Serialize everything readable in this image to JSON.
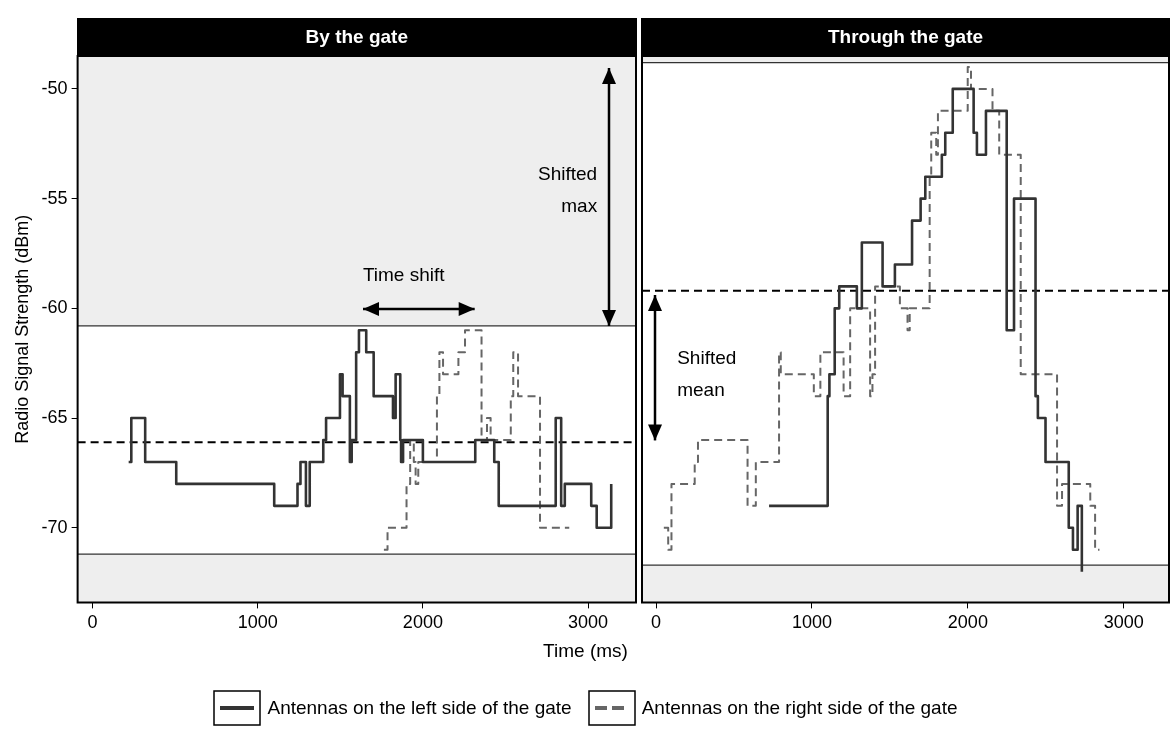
{
  "chart_data": [
    {
      "type": "step",
      "title": "By the gate",
      "xlabel": "Time (ms)",
      "ylabel": "Radio Signal Strength (dBm)",
      "xlim": [
        -90,
        3290
      ],
      "xticks": [
        0,
        1000,
        2000,
        3000
      ],
      "ylim": [
        -73.4,
        -48.5
      ],
      "yticks": [
        -70,
        -65,
        -60,
        -55,
        -50
      ],
      "legend": "bottom",
      "series": [
        {
          "name": "Antennas on the left side of the gate",
          "color": "#333333",
          "line_style": "solid",
          "x": [
            219,
            235,
            319,
            507,
            1100,
            1241,
            1259,
            1292,
            1315,
            1397,
            1414,
            1498,
            1514,
            1558,
            1569,
            1596,
            1613,
            1657,
            1702,
            1819,
            1835,
            1863,
            1868,
            1880,
            2000,
            2317,
            2432,
            2459,
            2804,
            2837,
            2859,
            3019,
            3052,
            3140
          ],
          "values": [
            -67,
            -65,
            -67,
            -68,
            -69,
            -68,
            -67,
            -69,
            -67,
            -66,
            -65,
            -63,
            -64,
            -67,
            -66,
            -62,
            -61,
            -62,
            -64,
            -65,
            -63,
            -66,
            -67,
            -66,
            -67,
            -66,
            -67,
            -69,
            -65,
            -69,
            -68,
            -69,
            -70,
            -68
          ]
        },
        {
          "name": "Antennas on the right side of the gate",
          "color": "#666666",
          "line_style": "dashed",
          "x": [
            1764,
            1786,
            1901,
            1923,
            1945,
            1956,
            1972,
            2085,
            2100,
            2122,
            2215,
            2255,
            2355,
            2388,
            2410,
            2532,
            2547,
            2576,
            2709,
            2886
          ],
          "values": [
            -71,
            -70,
            -68,
            -66,
            -67,
            -68,
            -67,
            -64,
            -62,
            -63,
            -62,
            -61,
            -66,
            -65,
            -66,
            -64,
            -62,
            -64,
            -70,
            -70
          ]
        }
      ],
      "bands": [
        {
          "axis": "y",
          "from": -60.8,
          "to": -48.5,
          "color": "#eeeeee"
        },
        {
          "axis": "y",
          "from": -73.4,
          "to": -71.2,
          "color": "#eeeeee"
        }
      ],
      "ref_lines": [
        {
          "axis": "y",
          "value": -60.8,
          "color": "#333333",
          "line_style": "solid"
        },
        {
          "axis": "y",
          "value": -71.2,
          "color": "#333333",
          "line_style": "solid"
        },
        {
          "axis": "y",
          "value": -66.1,
          "color": "#000000",
          "line_style": "dashed"
        }
      ],
      "annotations": [
        "Time shift",
        "Shifted max"
      ]
    },
    {
      "type": "step",
      "title": "Through the gate",
      "xlim": [
        -90,
        3290
      ],
      "xticks": [
        0,
        1000,
        2000,
        3000
      ],
      "ylim": [
        -73.4,
        -48.5
      ],
      "yticks": [
        -70,
        -65,
        -60,
        -55,
        -50
      ],
      "tick_labels": "x",
      "series": [
        {
          "color": "#333333",
          "line_style": "solid",
          "x": [
            725,
            1101,
            1112,
            1146,
            1175,
            1288,
            1320,
            1453,
            1532,
            1642,
            1697,
            1727,
            1833,
            1855,
            1903,
            2037,
            2058,
            2116,
            2249,
            2296,
            2434,
            2449,
            2498,
            2647,
            2674,
            2704,
            2731
          ],
          "values": [
            -69,
            -64,
            -63,
            -60,
            -59,
            -60,
            -57,
            -59,
            -58,
            -56,
            -55,
            -54,
            -53,
            -52,
            -50,
            -52,
            -53,
            -51,
            -61,
            -55,
            -64,
            -65,
            -67,
            -70,
            -71,
            -69,
            -72
          ]
        },
        {
          "color": "#666666",
          "line_style": "dashed",
          "x": [
            50,
            78,
            99,
            248,
            269,
            587,
            640,
            789,
            800,
            1012,
            1054,
            1203,
            1245,
            1373,
            1388,
            1405,
            1564,
            1613,
            1627,
            1755,
            1765,
            1797,
            1808,
            1999,
            2020,
            2158,
            2201,
            2339,
            2572,
            2604,
            2785,
            2816,
            2844
          ],
          "values": [
            -70,
            -71,
            -68,
            -67,
            -66,
            -69,
            -67,
            -62,
            -63,
            -64,
            -62,
            -64,
            -60,
            -64,
            -63,
            -59,
            -60,
            -61,
            -60,
            -54,
            -52,
            -53,
            -51,
            -49,
            -50,
            -51,
            -53,
            -63,
            -69,
            -68,
            -69,
            -71,
            -71
          ]
        }
      ],
      "bands": [
        {
          "axis": "y",
          "from": -48.8,
          "to": -48.5,
          "color": "#eeeeee"
        },
        {
          "axis": "y",
          "from": -73.4,
          "to": -71.7,
          "color": "#eeeeee"
        }
      ],
      "ref_lines": [
        {
          "axis": "y",
          "value": -48.8,
          "color": "#333333",
          "line_style": "solid"
        },
        {
          "axis": "y",
          "value": -71.7,
          "color": "#333333",
          "line_style": "solid"
        },
        {
          "axis": "y",
          "value": -59.2,
          "color": "#000000",
          "line_style": "dashed"
        }
      ],
      "annotations": [
        "Shifted mean"
      ]
    }
  ]
}
